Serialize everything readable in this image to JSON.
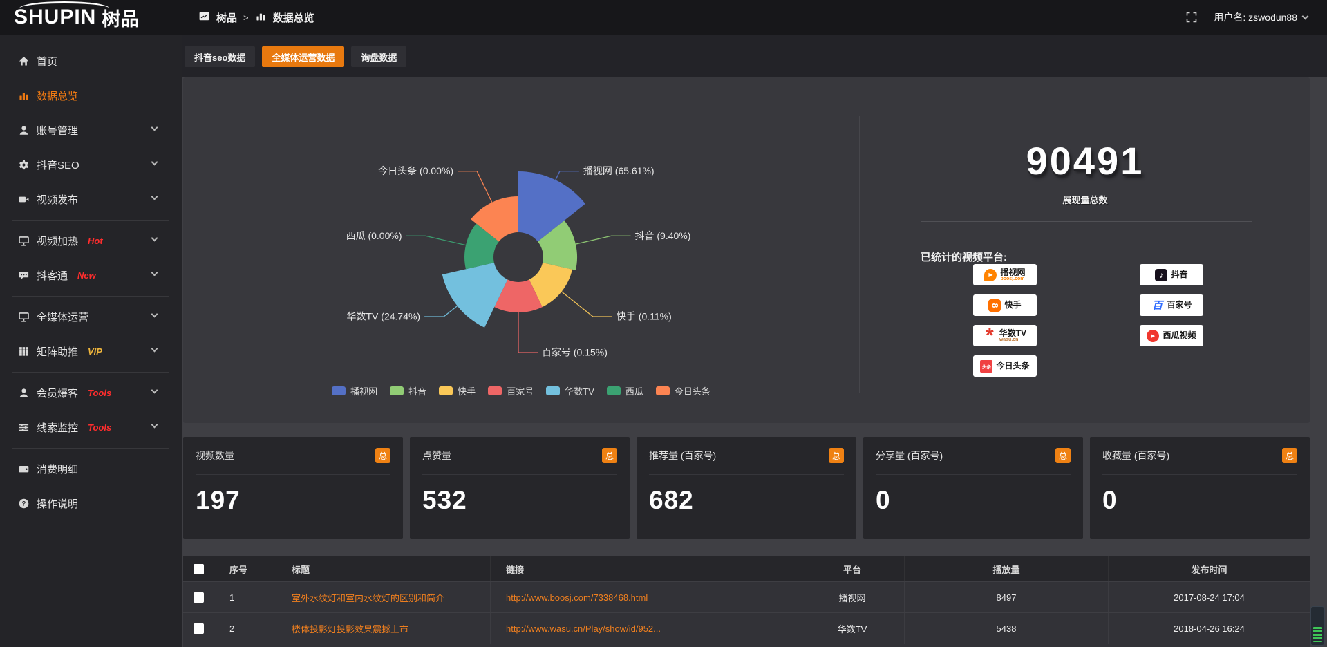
{
  "colors": {
    "accent": "#e8790f",
    "badge_orange": "#ef8113",
    "link_orange": "#ef7f1f",
    "hot_red": "#ff2d2d",
    "vip_yellow": "#f0b63c"
  },
  "logo": {
    "latin": "SHUPIN",
    "cn": "树品"
  },
  "topbar": {
    "breadcrumb_root": "树品",
    "breadcrumb_sep": ">",
    "breadcrumb_current": "数据总览",
    "username": "用户名: zswodun88"
  },
  "sidebar": {
    "items": [
      {
        "type": "item",
        "label": "首页",
        "icon": "home-icon",
        "active": false,
        "expandable": false
      },
      {
        "type": "item",
        "label": "数据总览",
        "icon": "bar-chart-icon",
        "active": true,
        "expandable": false
      },
      {
        "type": "item",
        "label": "账号管理",
        "icon": "user-icon",
        "active": false,
        "expandable": true
      },
      {
        "type": "item",
        "label": "抖音SEO",
        "icon": "gear-icon",
        "active": false,
        "expandable": true
      },
      {
        "type": "item",
        "label": "视频发布",
        "icon": "video-publish-icon",
        "active": false,
        "expandable": true
      },
      {
        "type": "divider"
      },
      {
        "type": "item",
        "label": "视频加热",
        "icon": "screen-heat-icon",
        "badge": "Hot",
        "badge_color": "#ff2d2d",
        "active": false,
        "expandable": true
      },
      {
        "type": "item",
        "label": "抖客通",
        "icon": "chat-icon",
        "badge": "New",
        "badge_color": "#ff2d2d",
        "active": false,
        "expandable": true
      },
      {
        "type": "divider"
      },
      {
        "type": "item",
        "label": "全媒体运营",
        "icon": "monitor-icon",
        "active": false,
        "expandable": true
      },
      {
        "type": "item",
        "label": "矩阵助推",
        "icon": "grid-icon",
        "badge": "VIP",
        "badge_color": "#f0b63c",
        "active": false,
        "expandable": true
      },
      {
        "type": "divider"
      },
      {
        "type": "item",
        "label": "会员爆客",
        "icon": "member-icon",
        "badge": "Tools",
        "badge_color": "#ff2d2d",
        "active": false,
        "expandable": true
      },
      {
        "type": "item",
        "label": "线索监控",
        "icon": "sliders-icon",
        "badge": "Tools",
        "badge_color": "#ff2d2d",
        "active": false,
        "expandable": true
      },
      {
        "type": "divider"
      },
      {
        "type": "item",
        "label": "消费明细",
        "icon": "wallet-icon",
        "active": false,
        "expandable": false
      },
      {
        "type": "item",
        "label": "操作说明",
        "icon": "help-icon",
        "active": false,
        "expandable": false
      }
    ]
  },
  "tabs": [
    {
      "label": "抖音seo数据",
      "active": false
    },
    {
      "label": "全媒体运营数据",
      "active": true
    },
    {
      "label": "询盘数据",
      "active": false
    }
  ],
  "chart_data": {
    "type": "pie",
    "rose_type": true,
    "title": "",
    "legend_position": "bottom",
    "label_format": "{name} ({value}%)",
    "inner_radius": 36,
    "series": [
      {
        "name": "播视网",
        "value": 65.61,
        "color": "#5470c6",
        "display_radius": 124
      },
      {
        "name": "抖音",
        "value": 9.4,
        "color": "#91cc75",
        "display_radius": 85
      },
      {
        "name": "快手",
        "value": 0.11,
        "color": "#fac858",
        "display_radius": 80
      },
      {
        "name": "百家号",
        "value": 0.15,
        "color": "#ee6666",
        "display_radius": 80
      },
      {
        "name": "华数TV",
        "value": 24.74,
        "color": "#73c0de",
        "display_radius": 113
      },
      {
        "name": "西瓜",
        "value": 0.0,
        "color": "#3ba272",
        "display_radius": 78
      },
      {
        "name": "今日头条",
        "value": 0.0,
        "color": "#fc8452",
        "display_radius": 88
      }
    ]
  },
  "summary": {
    "total": "90491",
    "total_label": "展现量总数",
    "platforms_title": "已统计的视频平台:",
    "platforms": [
      {
        "name": "播视网",
        "sub": "boosj.com",
        "icon": "boosj-icon"
      },
      {
        "name": "快手",
        "sub": "",
        "icon": "kuaishou-icon"
      },
      {
        "name": "华数TV",
        "sub": "wasu.cn",
        "icon": "wasu-icon"
      },
      {
        "name": "今日头条",
        "sub": "",
        "icon": "toutiao-icon"
      },
      {
        "name": "抖音",
        "sub": "",
        "icon": "douyin-icon"
      },
      {
        "name": "百家号",
        "sub": "",
        "icon": "baijiahao-icon"
      },
      {
        "name": "西瓜视频",
        "sub": "",
        "icon": "xigua-icon"
      }
    ]
  },
  "stat_cards": [
    {
      "label": "视频数量",
      "badge": "总",
      "value": "197"
    },
    {
      "label": "点赞量",
      "badge": "总",
      "value": "532"
    },
    {
      "label": "推荐量 (百家号)",
      "badge": "总",
      "value": "682"
    },
    {
      "label": "分享量 (百家号)",
      "badge": "总",
      "value": "0"
    },
    {
      "label": "收藏量 (百家号)",
      "badge": "总",
      "value": "0"
    }
  ],
  "table": {
    "headers": [
      "序号",
      "标题",
      "链接",
      "平台",
      "播放量",
      "发布时间"
    ],
    "rows": [
      {
        "no": "1",
        "title": "室外水纹灯和室内水纹灯的区别和简介",
        "link": "http://www.boosj.com/7338468.html",
        "platform": "播视网",
        "plays": "8497",
        "time": "2017-08-24 17:04"
      },
      {
        "no": "2",
        "title": "楼体投影灯投影效果震撼上市",
        "link": "http://www.wasu.cn/Play/show/id/952...",
        "platform": "华数TV",
        "plays": "5438",
        "time": "2018-04-26 16:24"
      }
    ]
  }
}
